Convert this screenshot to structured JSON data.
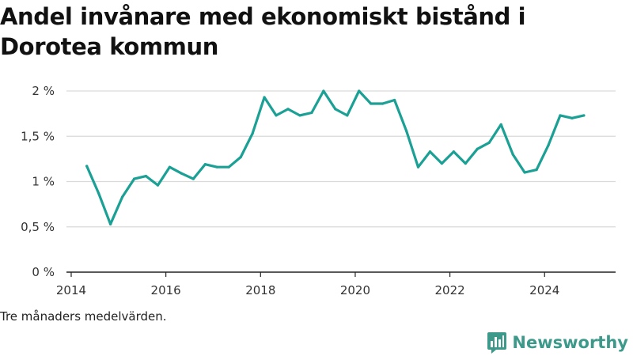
{
  "title": "Andel invånare med ekonomiskt bistånd i Dorotea kommun",
  "note": "Tre månaders medelvärden.",
  "brand": {
    "name": "Newsworthy",
    "icon": "newsworthy-logo-icon",
    "color": "#3d9a8b"
  },
  "colors": {
    "line": "#1aa094",
    "grid": "#d9d9d9",
    "axis": "#222222"
  },
  "chart_data": {
    "type": "line",
    "title": "Andel invånare med ekonomiskt bistånd i Dorotea kommun",
    "xlabel": "",
    "ylabel": "",
    "xlim": [
      2013.9,
      2025.5
    ],
    "ylim": [
      0,
      2
    ],
    "x_ticks": [
      2014,
      2016,
      2018,
      2020,
      2022,
      2024
    ],
    "x_tick_labels": [
      "2014",
      "2016",
      "2018",
      "2020",
      "2022",
      "2024"
    ],
    "y_ticks": [
      0,
      0.5,
      1,
      1.5,
      2
    ],
    "y_tick_labels": [
      "0 %",
      "0,5 %",
      "1 %",
      "1,5 %",
      "2 %"
    ],
    "grid": "horizontal",
    "legend": "none",
    "series": [
      {
        "x": [
          2014.33,
          2014.58,
          2014.83,
          2015.08,
          2015.33,
          2015.58,
          2015.83,
          2016.08,
          2016.33,
          2016.58,
          2016.83,
          2017.08,
          2017.33,
          2017.58,
          2017.83,
          2018.08,
          2018.33,
          2018.58,
          2018.83,
          2019.08,
          2019.33,
          2019.58,
          2019.83,
          2020.08,
          2020.33,
          2020.58,
          2020.83,
          2021.08,
          2021.33,
          2021.58,
          2021.83,
          2022.08,
          2022.33,
          2022.58,
          2022.83,
          2023.08,
          2023.33,
          2023.58,
          2023.83,
          2024.08,
          2024.33,
          2024.58,
          2024.83
        ],
        "values": [
          1.17,
          0.87,
          0.53,
          0.83,
          1.03,
          1.06,
          0.96,
          1.16,
          1.09,
          1.03,
          1.19,
          1.16,
          1.16,
          1.27,
          1.53,
          1.93,
          1.73,
          1.8,
          1.73,
          1.76,
          2.0,
          1.8,
          1.73,
          2.0,
          1.86,
          1.86,
          1.9,
          1.56,
          1.16,
          1.33,
          1.2,
          1.33,
          1.2,
          1.36,
          1.43,
          1.63,
          1.3,
          1.1,
          1.13,
          1.4,
          1.73,
          1.7,
          1.73
        ]
      }
    ]
  }
}
